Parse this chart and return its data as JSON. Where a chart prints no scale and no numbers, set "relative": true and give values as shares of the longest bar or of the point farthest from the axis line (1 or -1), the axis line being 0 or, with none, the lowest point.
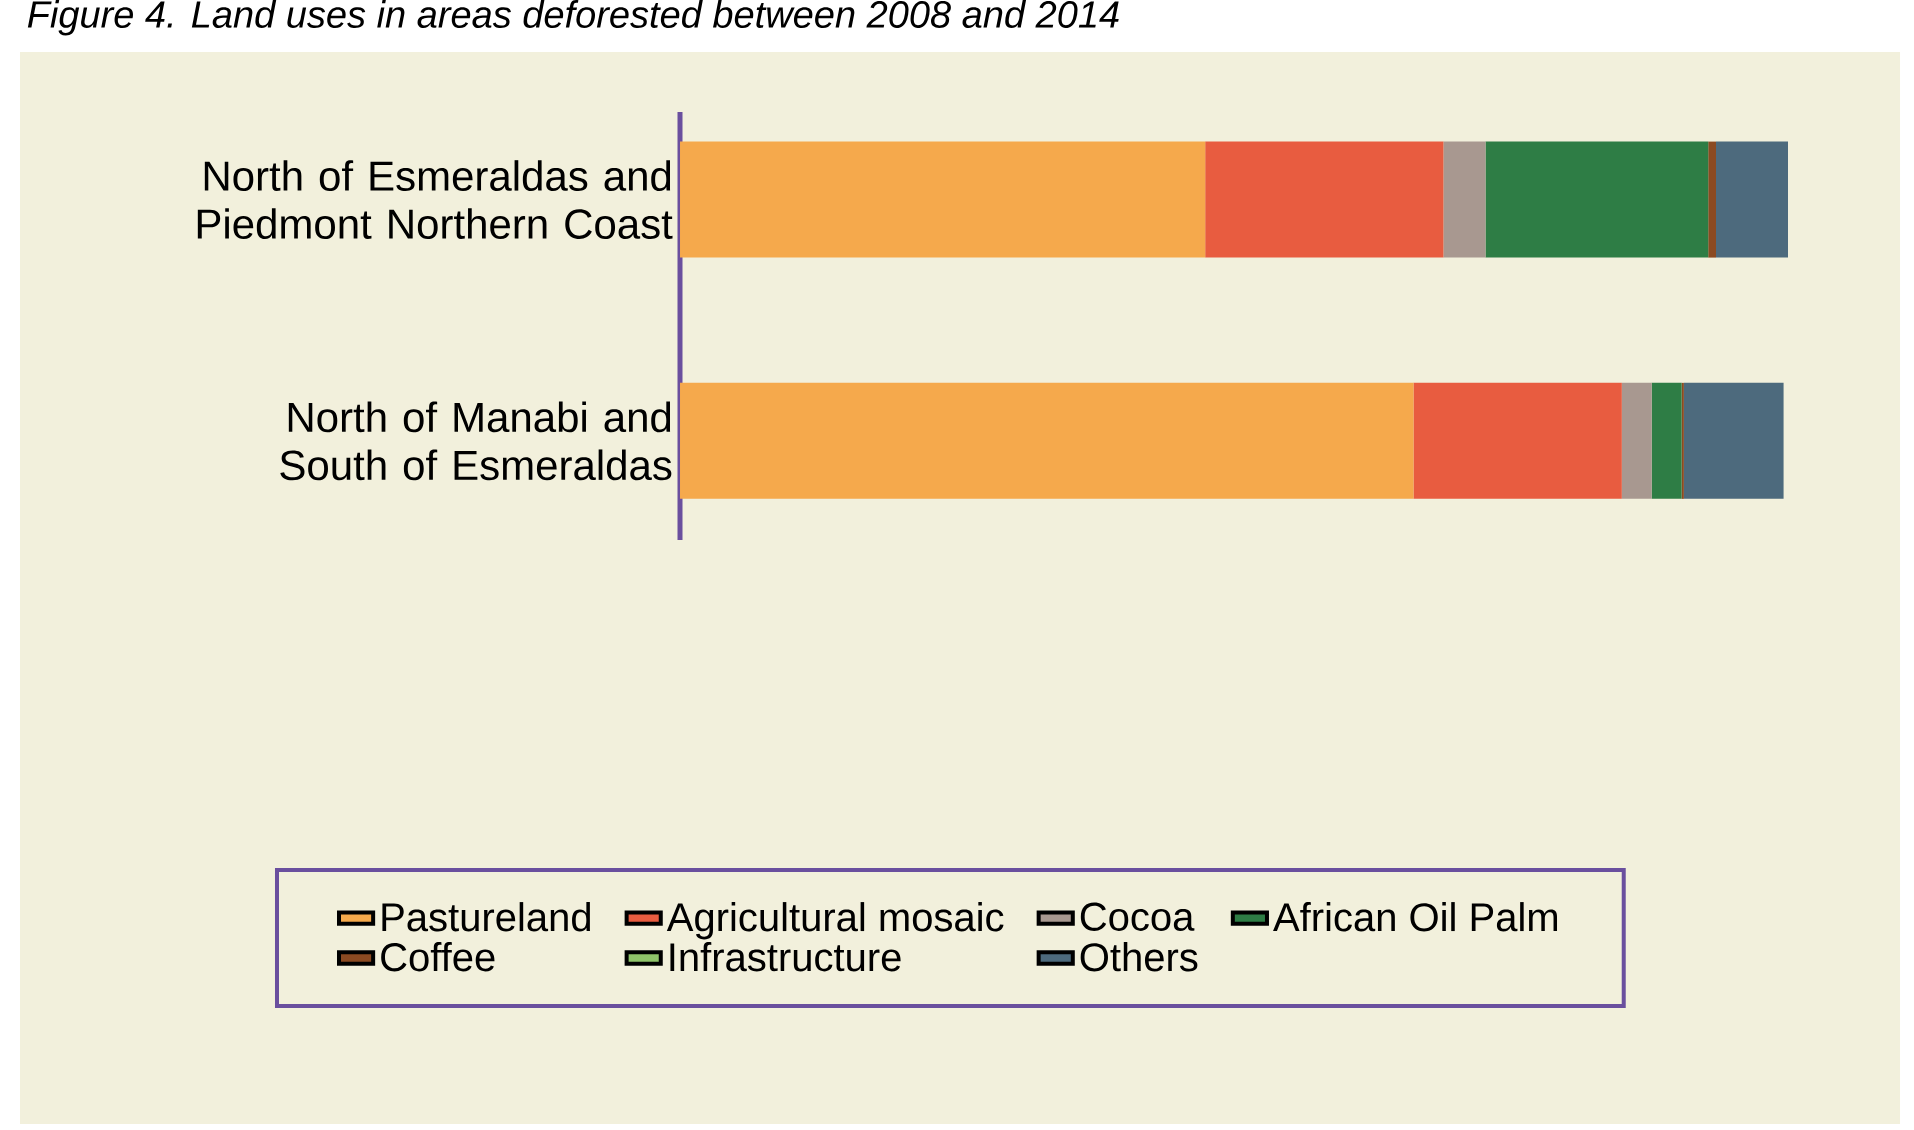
{
  "chart_data": {
    "type": "bar",
    "orientation": "horizontal",
    "stacked": true,
    "relative": true,
    "title": "Figure 4. Land uses in areas deforested between 2008 and 2014",
    "categories": [
      "North of Esmeraldas and Piedmont Northern Coast",
      "North of Manabi and South of Esmeraldas"
    ],
    "series": [
      {
        "name": "Pastureland",
        "color": "#f5a94c",
        "values": [
          0.474,
          0.662
        ]
      },
      {
        "name": "Agricultural mosaic",
        "color": "#e85c40",
        "values": [
          0.215,
          0.188
        ]
      },
      {
        "name": "Cocoa",
        "color": "#a89890",
        "values": [
          0.038,
          0.027
        ]
      },
      {
        "name": "African Oil Palm",
        "color": "#2e7d45",
        "values": [
          0.201,
          0.027
        ]
      },
      {
        "name": "Coffee",
        "color": "#8b4a22",
        "values": [
          0.007,
          0.002
        ]
      },
      {
        "name": "Infrastructure",
        "color": "#8fc46a",
        "values": [
          0,
          0
        ]
      },
      {
        "name": "Others",
        "color": "#4d6a7d",
        "values": [
          0.065,
          0.09
        ]
      }
    ],
    "legend": "bottom"
  }
}
